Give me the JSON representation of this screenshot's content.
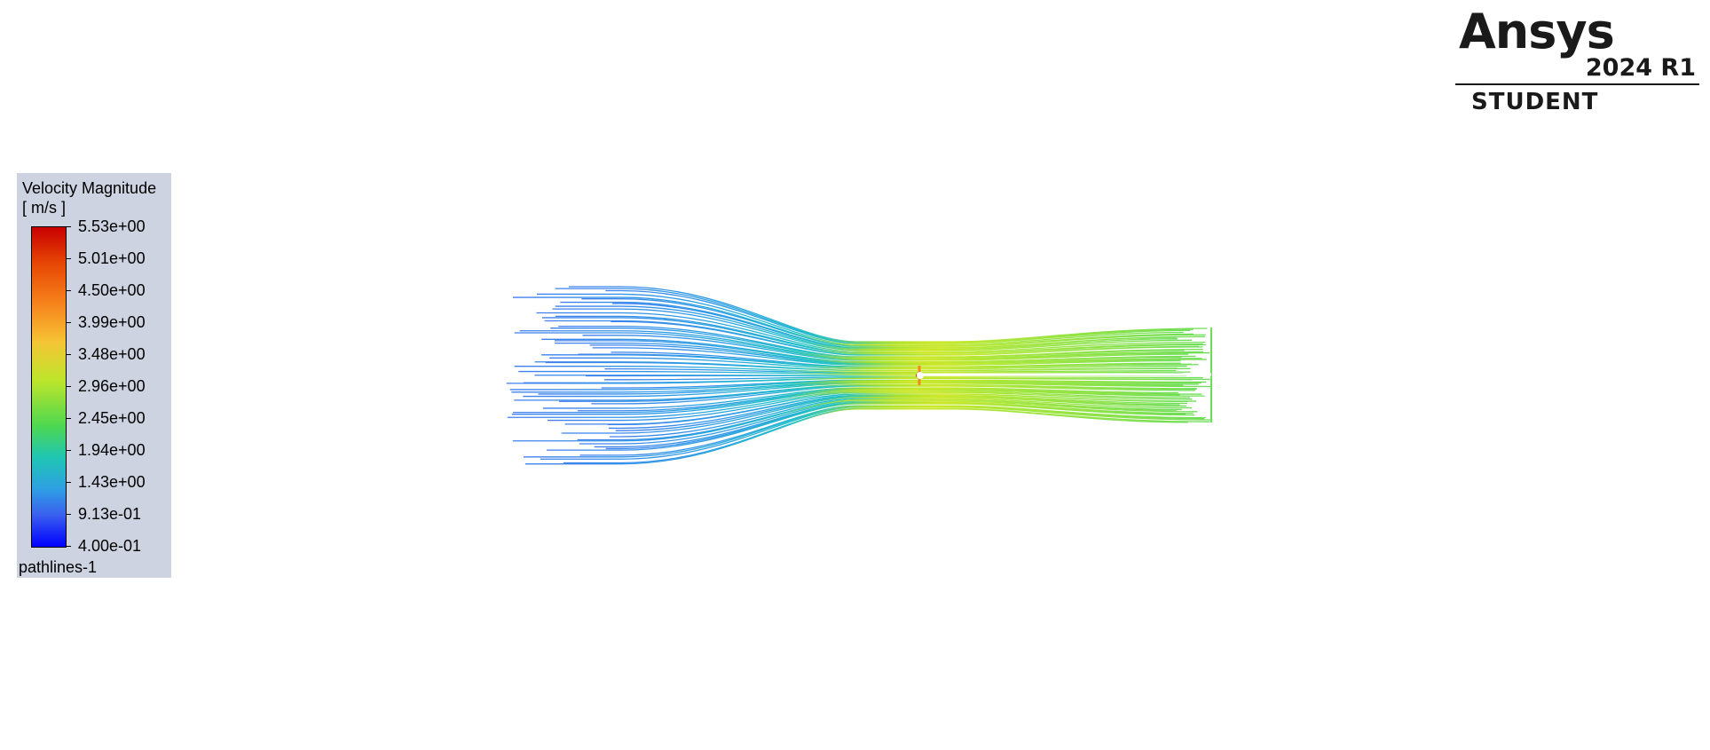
{
  "legend": {
    "title": "Velocity Magnitude",
    "units": "[ m/s ]",
    "ticks": [
      "5.53e+00",
      "5.01e+00",
      "4.50e+00",
      "3.99e+00",
      "3.48e+00",
      "2.96e+00",
      "2.45e+00",
      "1.94e+00",
      "1.43e+00",
      "9.13e-01",
      "4.00e-01"
    ],
    "object_name": "pathlines-1",
    "colormap": [
      "#0000ff",
      "#3a60ee",
      "#2e9fe4",
      "#1fc6b2",
      "#4fd84f",
      "#bde52b",
      "#f5c535",
      "#f7881e",
      "#e84a05",
      "#c80000"
    ]
  },
  "logo": {
    "brand": "Ansys",
    "version": "2024 R1",
    "edition": "STUDENT"
  }
}
